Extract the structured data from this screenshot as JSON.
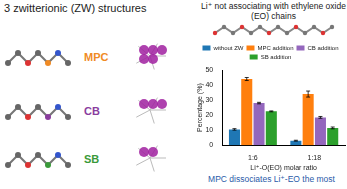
{
  "title": "3 zwitterionic (ZW) structures",
  "structures": [
    {
      "label": "MPC",
      "color": "#f08a24"
    },
    {
      "label": "CB",
      "color": "#8a3d9e"
    },
    {
      "label": "SB",
      "color": "#3a9a3a"
    }
  ],
  "heading": "Li⁺ not associating with ethylene oxide (EO) chains",
  "conclusion": "MPC dissociates Li⁺-EO the most",
  "chart_data": {
    "type": "bar",
    "categories": [
      "1:6",
      "1:18"
    ],
    "x_label": "Li⁺-O(EO) molar ratio",
    "y_label": "Percentage (%)",
    "series": [
      {
        "name": "without ZW",
        "color": "#1f77b4",
        "values": [
          10.5,
          3
        ],
        "errors": [
          0.5,
          0.3
        ]
      },
      {
        "name": "MPC addition",
        "color": "#ff7f0e",
        "values": [
          44,
          34
        ],
        "errors": [
          1,
          2
        ]
      },
      {
        "name": "CB addition",
        "color": "#9467bd",
        "values": [
          28,
          18.5
        ],
        "errors": [
          0.5,
          0.6
        ]
      },
      {
        "name": "SB addition",
        "color": "#2ca02c",
        "values": [
          22.5,
          11.5
        ],
        "errors": [
          0.3,
          0.6
        ]
      }
    ],
    "ylim": [
      0,
      50
    ],
    "yticks": [
      0,
      10,
      20,
      30,
      40,
      50
    ],
    "grid": false,
    "legend": "top"
  }
}
